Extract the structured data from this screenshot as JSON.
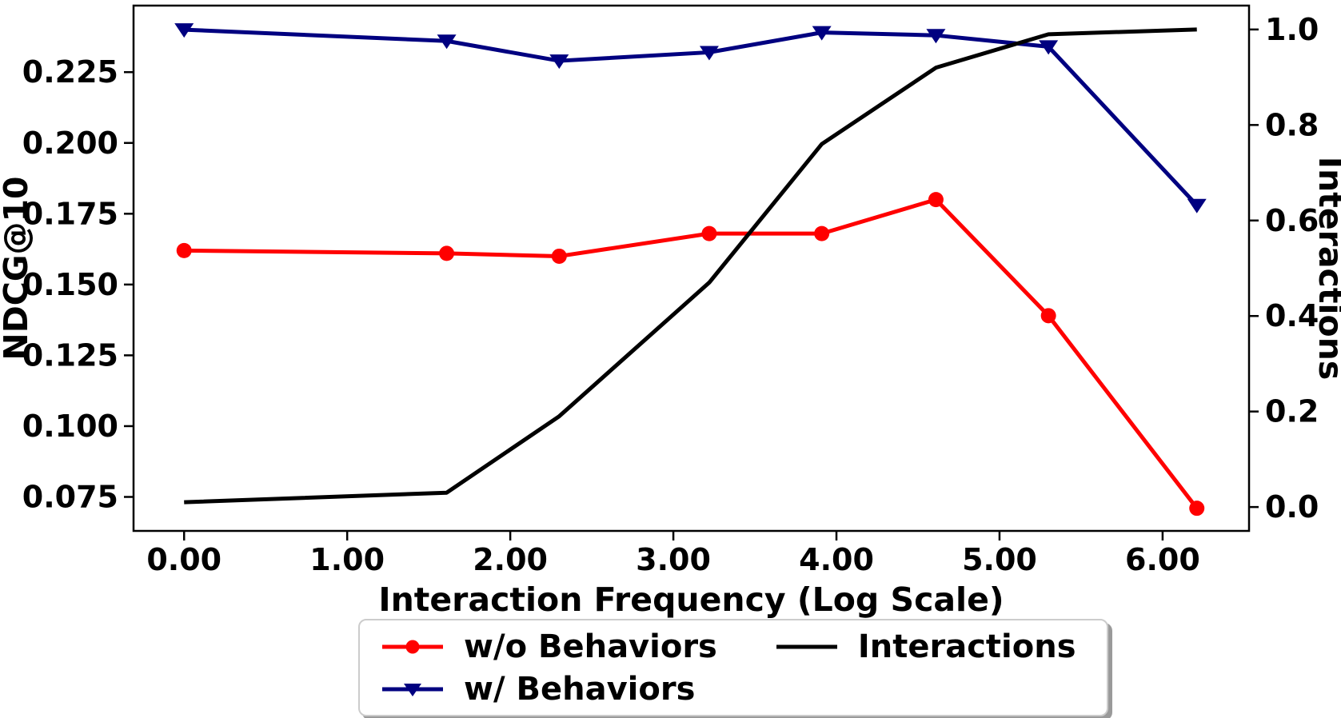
{
  "figure": {
    "background": "#ffffff",
    "text_color": "#000000",
    "spine_color": "#000000"
  },
  "chart_data": {
    "type": "line",
    "title": "",
    "xlabel": "Interaction Frequency (Log Scale)",
    "ylabel_left": "NDCG@10",
    "ylabel_right": "Interactions",
    "grid": false,
    "x": [
      0.0,
      1.61,
      2.3,
      3.22,
      3.91,
      4.61,
      5.3,
      6.21
    ],
    "series": [
      {
        "name": "w/o Behaviors",
        "axis": "left",
        "color": "#ff0000",
        "marker": "circle",
        "values": [
          0.162,
          0.161,
          0.16,
          0.168,
          0.168,
          0.18,
          0.139,
          0.071
        ]
      },
      {
        "name": "w/ Behaviors",
        "axis": "left",
        "color": "#000080",
        "marker": "triangle-down",
        "values": [
          0.24,
          0.236,
          0.229,
          0.232,
          0.239,
          0.238,
          0.234,
          0.178
        ]
      },
      {
        "name": "Interactions",
        "axis": "right",
        "color": "#000000",
        "marker": "none",
        "values": [
          0.01,
          0.03,
          0.19,
          0.47,
          0.76,
          0.92,
          0.99,
          1.0
        ]
      }
    ],
    "xlim": [
      -0.31,
      6.53
    ],
    "ylim_left": [
      0.063,
      0.2485
    ],
    "ylim_right": [
      -0.05,
      1.05
    ],
    "xticks": {
      "values": [
        0,
        1,
        2,
        3,
        4,
        5,
        6
      ],
      "labels": [
        "0.00",
        "1.00",
        "2.00",
        "3.00",
        "4.00",
        "5.00",
        "6.00"
      ]
    },
    "yticks_left": {
      "values": [
        0.075,
        0.1,
        0.125,
        0.15,
        0.175,
        0.2,
        0.225
      ],
      "labels": [
        "0.075",
        "0.100",
        "0.125",
        "0.150",
        "0.175",
        "0.200",
        "0.225"
      ]
    },
    "yticks_right": {
      "values": [
        0.0,
        0.2,
        0.4,
        0.6,
        0.8,
        1.0
      ],
      "labels": [
        "0.0",
        "0.2",
        "0.4",
        "0.6",
        "0.8",
        "1.0"
      ]
    },
    "legend": {
      "position": "below-chart",
      "columns": 2,
      "order": [
        0,
        1,
        2
      ]
    }
  }
}
